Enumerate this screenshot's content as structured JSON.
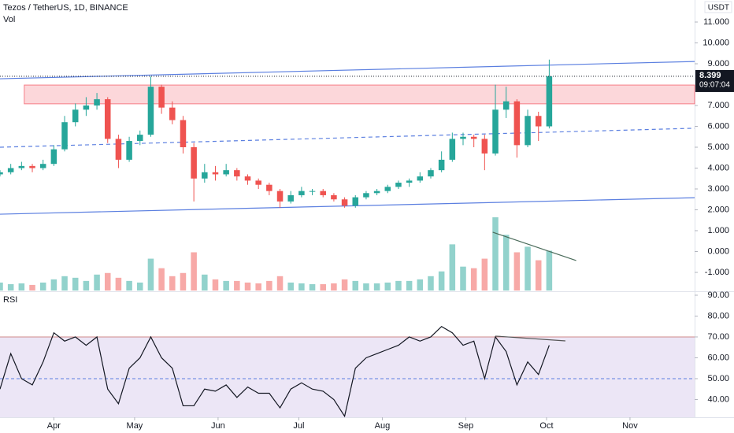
{
  "chart_data": {
    "type": "candlestick",
    "title": "Tezos / TetherUS, 1D, BINANCE",
    "currency": "USDT",
    "volume_label": "Vol",
    "rsi_label": "RSI",
    "last_price": 8.399,
    "countdown": "09:07:04",
    "up_color": "#26a69a",
    "down_color": "#ef5350",
    "x": [
      0,
      4,
      8,
      12,
      16,
      20,
      24,
      28,
      32,
      36,
      40,
      44,
      48,
      52,
      56,
      60,
      64,
      68,
      72,
      76,
      80,
      84,
      88,
      92,
      96,
      100,
      104,
      108,
      112,
      116,
      120,
      124,
      128,
      132,
      136,
      140,
      144,
      148,
      152,
      156,
      160,
      164,
      168,
      172,
      176,
      180,
      184,
      188,
      192,
      196,
      200,
      204
    ],
    "open": [
      3.7,
      3.8,
      4.0,
      4.1,
      4.0,
      4.2,
      4.9,
      6.2,
      6.8,
      7.0,
      7.3,
      5.4,
      4.4,
      5.3,
      5.6,
      7.9,
      6.9,
      6.3,
      5.0,
      3.5,
      3.8,
      3.7,
      3.9,
      3.6,
      3.4,
      3.2,
      2.9,
      2.4,
      2.7,
      2.9,
      2.9,
      2.7,
      2.5,
      2.2,
      2.6,
      2.8,
      2.9,
      3.1,
      3.3,
      3.4,
      3.6,
      3.9,
      4.4,
      5.4,
      5.5,
      5.4,
      4.7,
      6.8,
      7.2,
      5.1,
      6.5,
      6.0
    ],
    "high": [
      3.9,
      4.2,
      4.3,
      4.2,
      4.4,
      5.1,
      6.5,
      7.1,
      7.4,
      7.6,
      7.4,
      5.6,
      5.5,
      5.8,
      8.4,
      8.0,
      7.2,
      6.5,
      5.2,
      4.2,
      4.1,
      4.2,
      4.0,
      3.7,
      3.5,
      3.3,
      3.0,
      2.9,
      3.1,
      3.0,
      3.0,
      2.8,
      2.6,
      2.7,
      2.9,
      3.0,
      3.2,
      3.4,
      3.5,
      3.8,
      4.0,
      4.8,
      5.7,
      5.7,
      5.6,
      5.6,
      8.0,
      7.9,
      7.3,
      6.8,
      6.7,
      9.2
    ],
    "low": [
      3.6,
      3.7,
      3.9,
      3.8,
      3.9,
      4.1,
      4.8,
      6.0,
      6.5,
      6.8,
      5.2,
      4.0,
      4.3,
      5.1,
      5.5,
      6.6,
      6.1,
      4.7,
      2.4,
      3.3,
      3.4,
      3.6,
      3.4,
      3.2,
      3.0,
      2.7,
      2.1,
      2.3,
      2.6,
      2.7,
      2.6,
      2.4,
      2.1,
      2.1,
      2.5,
      2.7,
      2.8,
      3.0,
      3.1,
      3.3,
      3.5,
      3.8,
      4.3,
      5.1,
      5.0,
      3.9,
      4.6,
      6.4,
      4.5,
      5.0,
      5.3,
      5.9
    ],
    "close": [
      3.8,
      4.0,
      4.1,
      4.0,
      4.2,
      4.9,
      6.2,
      6.8,
      7.0,
      7.3,
      5.4,
      4.4,
      5.3,
      5.6,
      7.9,
      6.9,
      6.3,
      5.0,
      3.5,
      3.8,
      3.7,
      3.9,
      3.6,
      3.4,
      3.2,
      2.9,
      2.4,
      2.7,
      2.9,
      2.9,
      2.7,
      2.5,
      2.2,
      2.6,
      2.8,
      2.9,
      3.1,
      3.3,
      3.4,
      3.6,
      3.9,
      4.4,
      5.4,
      5.5,
      5.4,
      4.7,
      6.8,
      7.2,
      5.1,
      6.5,
      6.0,
      8.4
    ],
    "volume": [
      10,
      8,
      9,
      7,
      10,
      14,
      18,
      16,
      12,
      20,
      22,
      16,
      12,
      10,
      40,
      28,
      18,
      22,
      48,
      20,
      14,
      12,
      12,
      10,
      9,
      12,
      18,
      10,
      9,
      8,
      8,
      9,
      14,
      12,
      9,
      9,
      10,
      12,
      12,
      14,
      18,
      24,
      58,
      30,
      28,
      40,
      92,
      70,
      48,
      55,
      38,
      50
    ],
    "rsi": [
      45,
      62,
      50,
      47,
      58,
      72,
      68,
      70,
      66,
      70,
      45,
      38,
      55,
      60,
      70,
      60,
      55,
      37,
      37,
      45,
      44,
      47,
      41,
      46,
      43,
      43,
      36,
      45,
      48,
      45,
      44,
      40,
      32,
      55,
      60,
      62,
      64,
      66,
      70,
      68,
      70,
      75,
      72,
      66,
      68,
      50,
      70,
      63,
      47,
      58,
      52,
      66
    ],
    "xlim": [
      0,
      258
    ],
    "xticks": [
      {
        "value": 20,
        "label": "Apr"
      },
      {
        "value": 50,
        "label": "May"
      },
      {
        "value": 81,
        "label": "Jun"
      },
      {
        "value": 111,
        "label": "Jul"
      },
      {
        "value": 142,
        "label": "Aug"
      },
      {
        "value": 173,
        "label": "Sep"
      },
      {
        "value": 203,
        "label": "Oct"
      },
      {
        "value": 234,
        "label": "Nov"
      }
    ],
    "ylim": [
      -1.906,
      12.057
    ],
    "yticks": [
      {
        "value": 11,
        "label": "11.000"
      },
      {
        "value": 10,
        "label": "10.000"
      },
      {
        "value": 9,
        "label": "9.000"
      },
      {
        "value": 7,
        "label": "7.000"
      },
      {
        "value": 6,
        "label": "6.000"
      },
      {
        "value": 5,
        "label": "5.000"
      },
      {
        "value": 4,
        "label": "4.000"
      },
      {
        "value": 3,
        "label": "3.000"
      },
      {
        "value": 2,
        "label": "2.000"
      },
      {
        "value": 1,
        "label": "1.000"
      },
      {
        "value": 0,
        "label": "0.000"
      },
      {
        "value": -1,
        "label": "-1.000"
      }
    ],
    "rsi_ylim": [
      31.5,
      91.5
    ],
    "rsi_yticks": [
      {
        "value": 90,
        "label": "90.00"
      },
      {
        "value": 80,
        "label": "80.00"
      },
      {
        "value": 70,
        "label": "70.00"
      },
      {
        "value": 60,
        "label": "60.00"
      },
      {
        "value": 50,
        "label": "50.00"
      },
      {
        "value": 40,
        "label": "40.00"
      }
    ],
    "rsi_upper": 70,
    "rsi_middle": 50,
    "drawings": [
      {
        "kind": "line",
        "panel": "price",
        "color": "#5b7fe0",
        "x": [
          0,
          258
        ],
        "y": [
          8.28,
          9.11
        ]
      },
      {
        "kind": "dashed",
        "panel": "price",
        "color": "#5b7fe0",
        "x": [
          0,
          258
        ],
        "y": [
          5.0,
          5.91
        ]
      },
      {
        "kind": "line",
        "panel": "price",
        "color": "#5b7fe0",
        "x": [
          0,
          258
        ],
        "y": [
          1.79,
          2.58
        ]
      },
      {
        "kind": "box",
        "panel": "price",
        "color": "#f23645",
        "x": [
          9,
          258
        ],
        "y": [
          7.98,
          7.08
        ]
      },
      {
        "kind": "line",
        "panel": "price",
        "color": "#4a6b5a",
        "x": [
          183,
          214
        ],
        "y": [
          0.925,
          -0.43
        ]
      },
      {
        "kind": "line",
        "panel": "rsi",
        "color": "#555555",
        "x": [
          184,
          210
        ],
        "y": [
          70.4,
          68.1
        ]
      }
    ]
  }
}
